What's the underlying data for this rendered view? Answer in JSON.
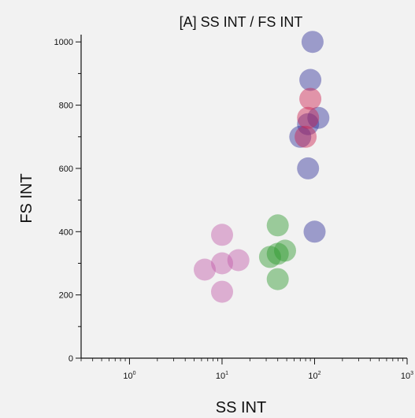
{
  "chart_data": {
    "type": "scatter",
    "title": "[A] SS INT / FS INT",
    "xlabel": "SS INT",
    "ylabel": "FS INT",
    "x_scale": "log",
    "xlim": [
      0.3,
      1000
    ],
    "ylim": [
      0,
      1023
    ],
    "x_ticks": [
      {
        "value": 1,
        "base": "10",
        "exp": "0"
      },
      {
        "value": 10,
        "base": "10",
        "exp": "1"
      },
      {
        "value": 100,
        "base": "10",
        "exp": "2"
      },
      {
        "value": 1000,
        "base": "10",
        "exp": "3"
      }
    ],
    "y_ticks": [
      0,
      200,
      400,
      600,
      800,
      1000
    ],
    "grid": false,
    "populations": [
      {
        "color": "#c05aa8",
        "points": [
          {
            "x": 10,
            "y": 300
          },
          {
            "x": 10,
            "y": 210
          },
          {
            "x": 10,
            "y": 390
          },
          {
            "x": 6.5,
            "y": 280
          },
          {
            "x": 15,
            "y": 310
          }
        ]
      },
      {
        "color": "#2e9a2e",
        "points": [
          {
            "x": 40,
            "y": 330
          },
          {
            "x": 40,
            "y": 250
          },
          {
            "x": 40,
            "y": 420
          },
          {
            "x": 33,
            "y": 320
          },
          {
            "x": 48,
            "y": 340
          }
        ]
      },
      {
        "color": "#30309a",
        "points": [
          {
            "x": 85,
            "y": 740
          },
          {
            "x": 85,
            "y": 600
          },
          {
            "x": 90,
            "y": 880
          },
          {
            "x": 95,
            "y": 1000
          },
          {
            "x": 70,
            "y": 700
          },
          {
            "x": 110,
            "y": 760
          },
          {
            "x": 100,
            "y": 400
          }
        ]
      },
      {
        "color": "#cc2250",
        "points": [
          {
            "x": 85,
            "y": 760
          },
          {
            "x": 80,
            "y": 700
          },
          {
            "x": 90,
            "y": 820
          }
        ]
      }
    ]
  }
}
